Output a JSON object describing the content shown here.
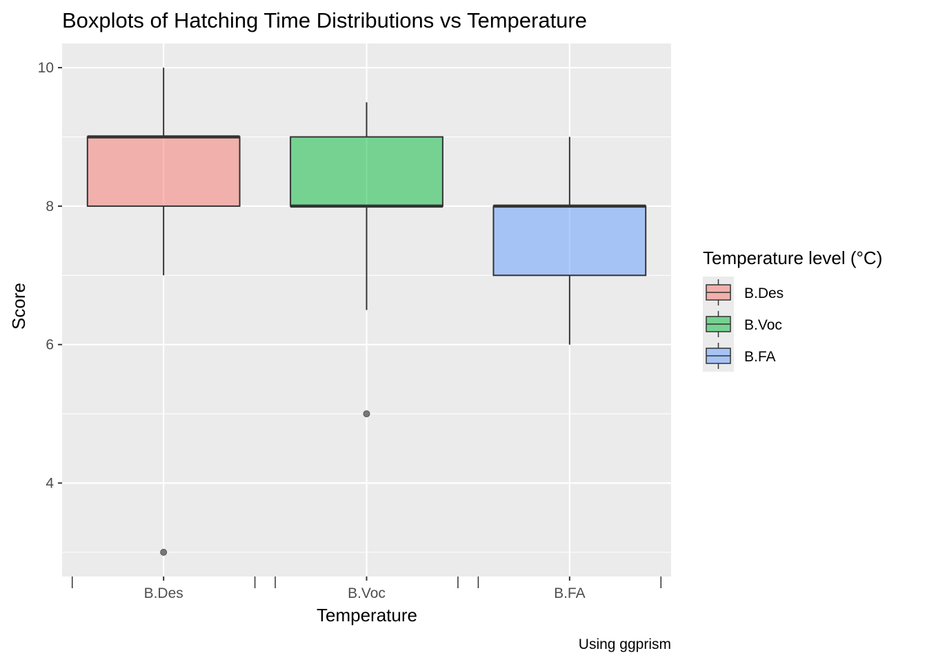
{
  "chart_data": {
    "type": "boxplot",
    "title": "Boxplots of Hatching Time Distributions vs Temperature",
    "xlabel": "Temperature",
    "ylabel": "Score",
    "caption": "Using ggprism",
    "categories": [
      "B.Des",
      "B.Voc",
      "B.FA"
    ],
    "ylim": [
      2.65,
      10.35
    ],
    "y_ticks": [
      4,
      6,
      8,
      10
    ],
    "y_tick_labels": [
      "4",
      "6",
      "8",
      "10"
    ],
    "grid": true,
    "legend": {
      "title": "Temperature level (°C)",
      "placement": "right",
      "entries": [
        "B.Des",
        "B.Voc",
        "B.FA"
      ]
    },
    "series": [
      {
        "category": "B.Des",
        "whisker_low": 7,
        "q1": 8,
        "median": 9,
        "q3": 9,
        "whisker_high": 10,
        "outliers": [
          3
        ],
        "color": "#F8766D"
      },
      {
        "category": "B.Voc",
        "whisker_low": 6.5,
        "q1": 8,
        "median": 8,
        "q3": 9,
        "whisker_high": 9.5,
        "outliers": [
          5
        ],
        "color": "#00BA38"
      },
      {
        "category": "B.FA",
        "whisker_low": 6,
        "q1": 7,
        "median": 8,
        "q3": 8,
        "whisker_high": 9,
        "outliers": [],
        "color": "#619CFF"
      }
    ],
    "colors": {
      "panel_bg": "#EBEBEB",
      "grid": "#FFFFFF",
      "box_outline": "#333333",
      "outlier": "#777777"
    }
  }
}
